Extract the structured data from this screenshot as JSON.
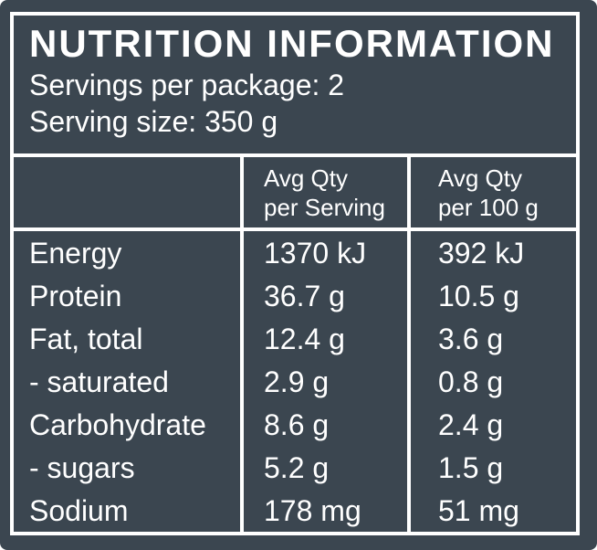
{
  "colors": {
    "background": "#3B4650",
    "foreground": "#FFFFFF",
    "border": "#FFFFFF"
  },
  "label": {
    "title": "NUTRITION INFORMATION",
    "servings_line": "Servings per package: 2",
    "serving_size_line": "Serving size: 350 g"
  },
  "table": {
    "header": {
      "nutrient_column": "",
      "per_serving": {
        "line1": "Avg Qty",
        "line2": "per Serving"
      },
      "per_100g": {
        "line1": "Avg Qty",
        "line2": "per 100 g"
      }
    },
    "rows": [
      {
        "name": "Energy",
        "per_serving": "1370 kJ",
        "per_100g": "392 kJ"
      },
      {
        "name": "Protein",
        "per_serving": "36.7 g",
        "per_100g": "10.5 g"
      },
      {
        "name": "Fat, total",
        "per_serving": "12.4 g",
        "per_100g": "3.6 g"
      },
      {
        "name": "- saturated",
        "per_serving": "2.9 g",
        "per_100g": "0.8 g"
      },
      {
        "name": "Carbohydrate",
        "per_serving": "8.6 g",
        "per_100g": "2.4 g"
      },
      {
        "name": "- sugars",
        "per_serving": "5.2 g",
        "per_100g": "1.5 g"
      },
      {
        "name": "Sodium",
        "per_serving": "178 mg",
        "per_100g": "51 mg"
      }
    ]
  }
}
